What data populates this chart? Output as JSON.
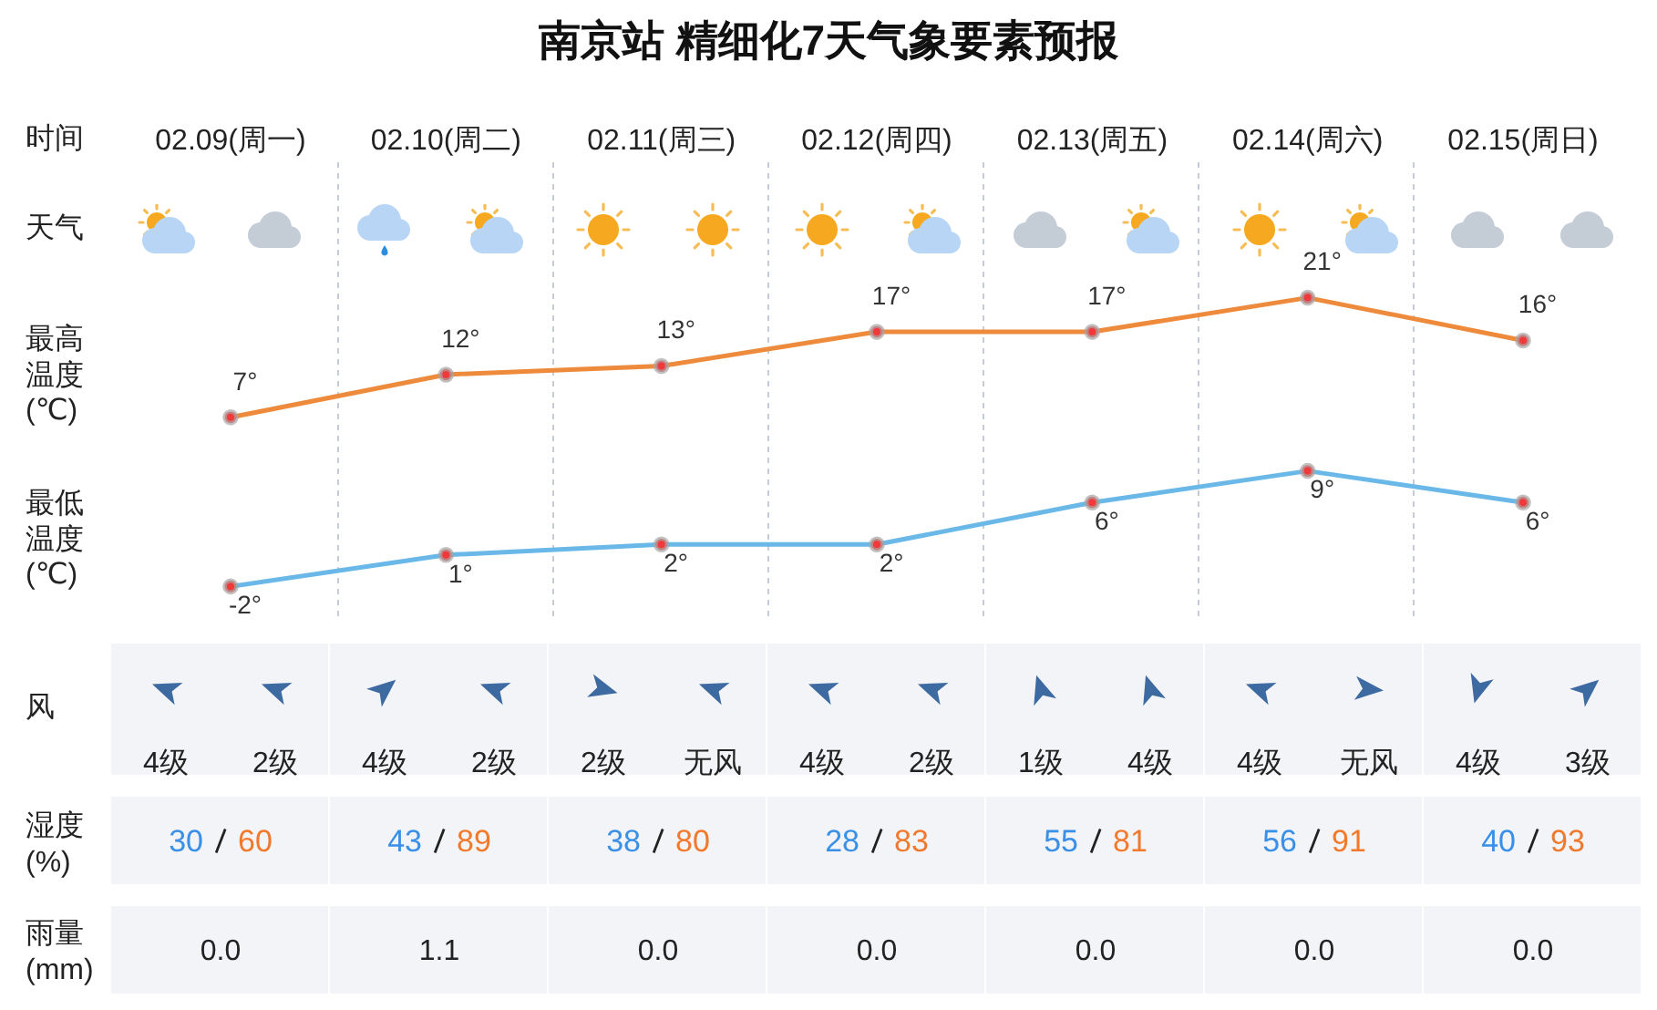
{
  "chart_data": [
    {
      "type": "line",
      "title": "南京站 精细化7天气象要素预报",
      "xlabel": "时间",
      "ylabel": "最高温度(℃)",
      "annotations": [
        "天气"
      ],
      "categories": [
        "02.09(周一)",
        "02.10(周二)",
        "02.11(周三)",
        "02.12(周四)",
        "02.13(周五)",
        "02.14(周六)",
        "02.15(周日)"
      ],
      "series": [
        {
          "color": "#ee8a3c",
          "values": [
            7,
            12,
            13,
            17,
            17,
            21,
            16
          ],
          "value_labels": [
            "7°",
            "12°",
            "13°",
            "17°",
            "17°",
            "21°",
            "16°"
          ]
        }
      ],
      "marker": "circle",
      "grid": "x",
      "tick_labels": "x"
    },
    {
      "type": "line",
      "ylabel": "最低温度(℃)",
      "categories": [
        null,
        null,
        null,
        null,
        null,
        null,
        null
      ],
      "series": [
        {
          "color": "#6ab8e8",
          "values": [
            -2,
            1,
            2,
            2,
            6,
            9,
            6
          ],
          "value_labels": [
            "-2°",
            "1°",
            "2°",
            "2°",
            "6°",
            "9°",
            "6°"
          ]
        }
      ],
      "marker": "circle",
      "grid": "x",
      "tick_labels": false
    },
    {
      "type": "other",
      "ylabel": "风",
      "annotations": [
        "4级",
        "2级",
        "4级",
        "2级",
        "2级",
        "无风",
        "4级",
        "2级",
        "1级",
        "4级",
        "4级",
        "无风",
        "4级",
        "3级"
      ]
    },
    {
      "type": "other",
      "ylabel": "湿度(%)",
      "annotations": [
        "30",
        "60",
        "43",
        "89",
        "38",
        "80",
        "28",
        "83",
        "55",
        "81",
        "56",
        "91",
        "40",
        "93"
      ]
    },
    {
      "type": "other",
      "ylabel": "雨量(mm)",
      "annotations": [
        "0.0",
        "1.1",
        "0.0",
        "0.0",
        "0.0",
        "0.0",
        "0.0"
      ]
    }
  ]
}
